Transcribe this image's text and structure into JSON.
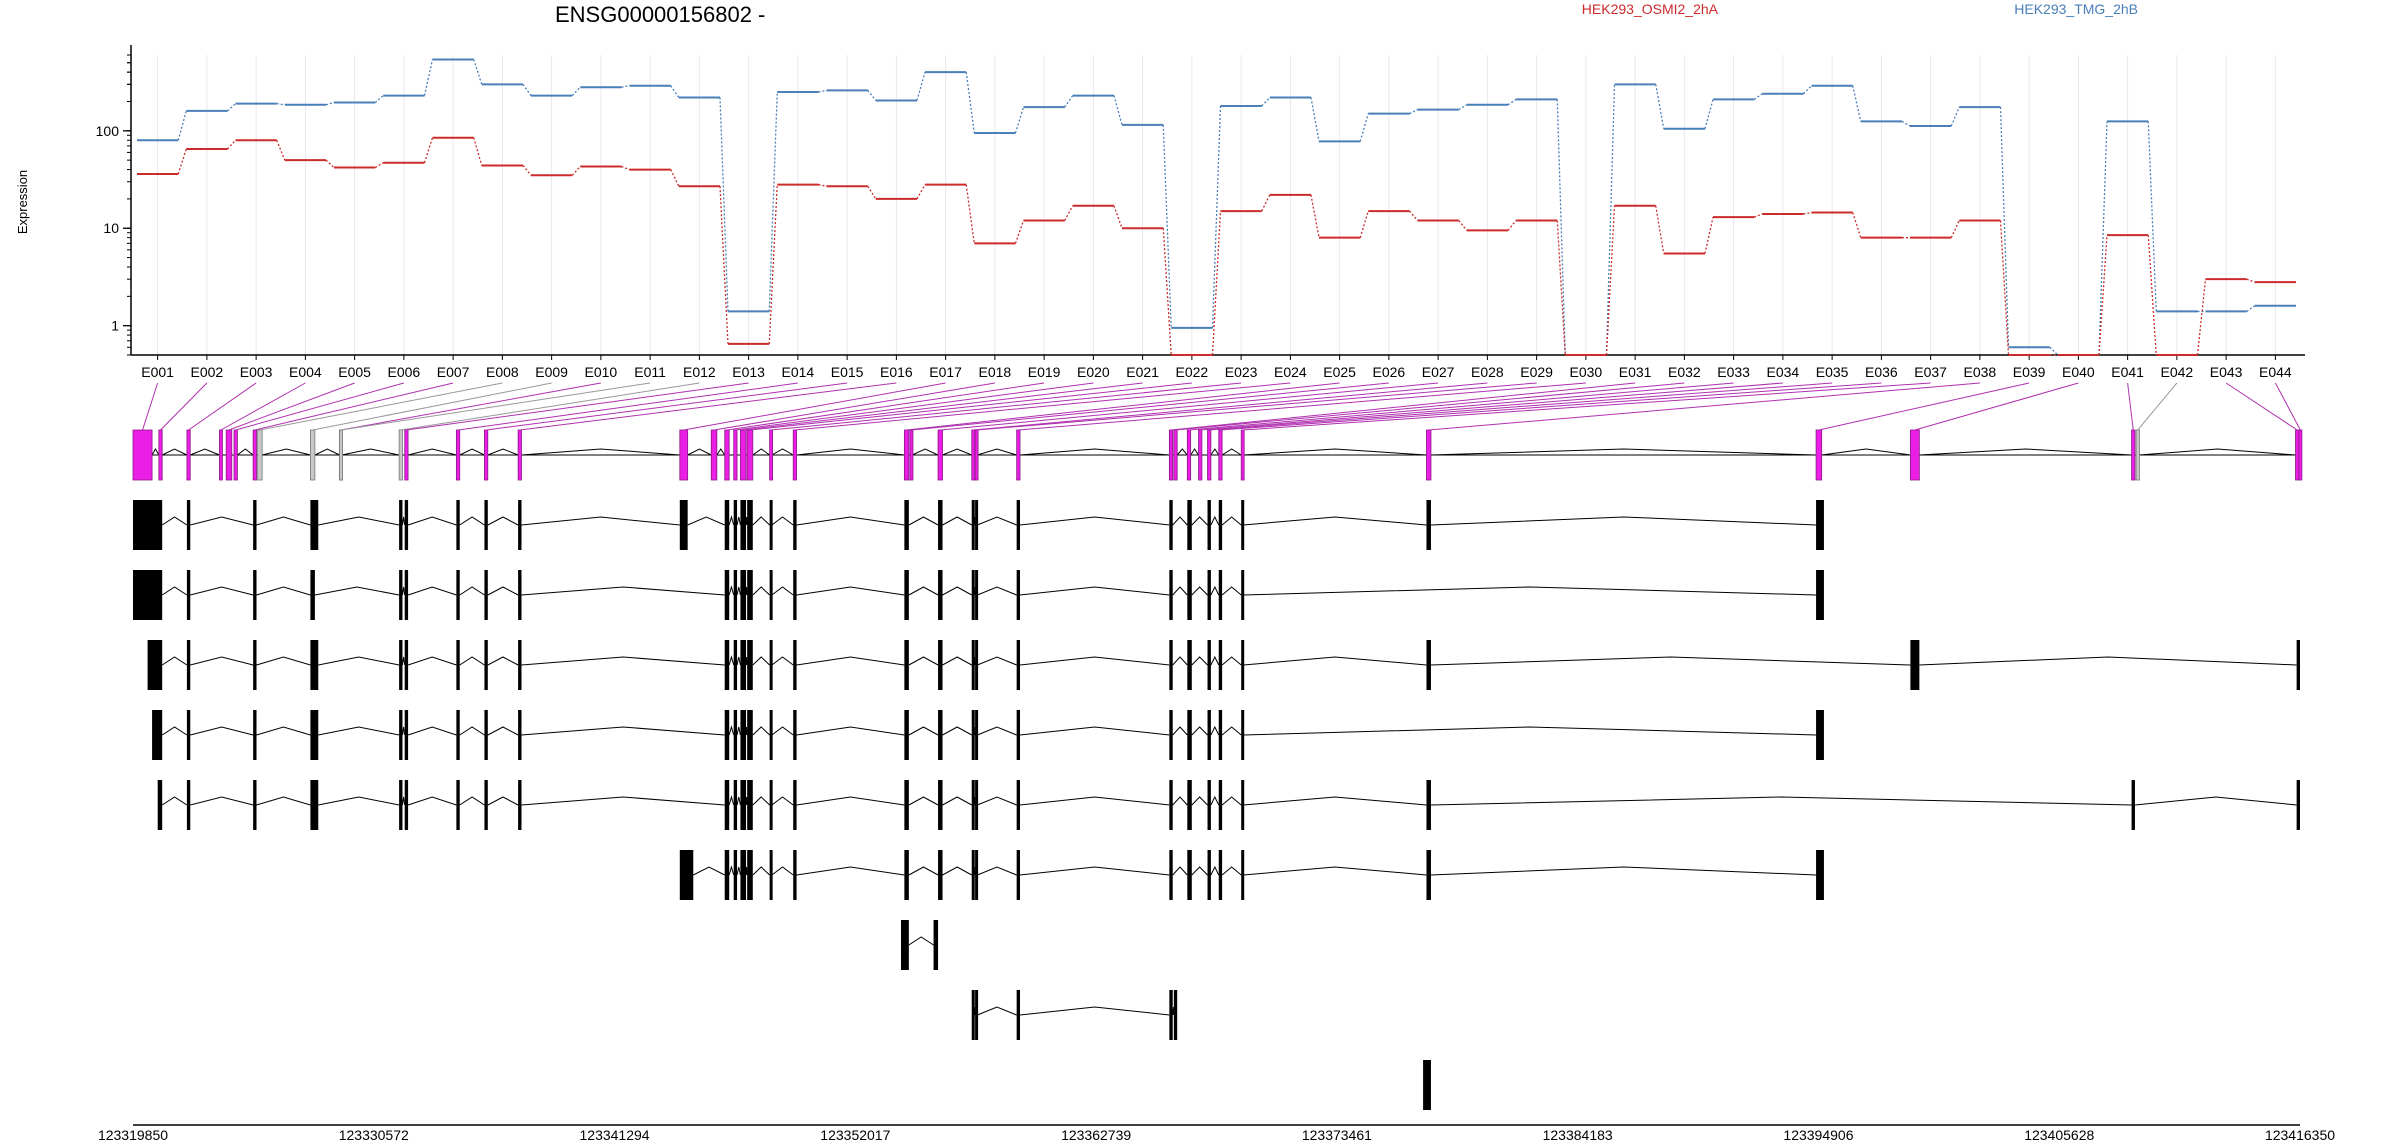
{
  "chart_data": {
    "type": "line",
    "title": "ENSG00000156802 -",
    "ylabel": "Expression",
    "xlabel": "",
    "y_scale": "log",
    "ylim": [
      0.5,
      600
    ],
    "yticks": [
      "1",
      "10",
      "100"
    ],
    "grid": "vertical lines at each exon label",
    "legend_placement": "top-right",
    "categories": [
      "E001",
      "E002",
      "E003",
      "E004",
      "E005",
      "E006",
      "E007",
      "E008",
      "E009",
      "E010",
      "E011",
      "E012",
      "E013",
      "E014",
      "E015",
      "E016",
      "E017",
      "E018",
      "E019",
      "E020",
      "E021",
      "E022",
      "E023",
      "E024",
      "E025",
      "E026",
      "E027",
      "E028",
      "E029",
      "E030",
      "E031",
      "E032",
      "E033",
      "E034",
      "E035",
      "E036",
      "E037",
      "E038",
      "E039",
      "E040",
      "E041",
      "E042",
      "E043",
      "E044"
    ],
    "series": [
      {
        "name": "HEK293_TMG_2hB",
        "color": "#4a7fb8",
        "values": [
          80,
          160,
          190,
          185,
          195,
          230,
          540,
          300,
          230,
          280,
          290,
          220,
          1.4,
          250,
          260,
          205,
          400,
          95,
          175,
          230,
          115,
          0.95,
          180,
          220,
          78,
          150,
          165,
          185,
          210,
          0.5,
          300,
          105,
          210,
          240,
          290,
          125,
          112,
          175,
          0.6,
          0.5,
          125,
          1.4,
          1.4,
          1.6
        ]
      },
      {
        "name": "HEK293_OSMI2_2hA",
        "color": "#cc2b2b",
        "values": [
          36,
          65,
          80,
          50,
          42,
          47,
          85,
          44,
          35,
          43,
          40,
          27,
          0.65,
          28,
          27,
          20,
          28,
          7,
          12,
          17,
          10,
          0.5,
          15,
          22,
          8,
          15,
          12,
          9.5,
          12,
          0.5,
          17,
          5.5,
          13,
          14,
          14.5,
          8,
          8,
          12,
          0.5,
          0.5,
          8.5,
          0.5,
          3,
          2.8
        ]
      }
    ],
    "genomic_axis_ticks": [
      "123319850",
      "123330572",
      "123341294",
      "123352017",
      "123362739",
      "123373461",
      "123384183",
      "123394906",
      "123405628",
      "123416350"
    ],
    "gene_model": {
      "exon_spans": [
        [
          123319850,
          123320700
        ],
        [
          123321000,
          123321150
        ],
        [
          123322250,
          123322400
        ],
        [
          123323700,
          123323800
        ],
        [
          123324000,
          123324250
        ],
        [
          123324350,
          123324500
        ],
        [
          123325200,
          123325350
        ],
        [
          123325400,
          123325600
        ],
        [
          123327750,
          123327950
        ],
        [
          123329050,
          123329150
        ],
        [
          123329050,
          123329150
        ],
        [
          123331700,
          123331850
        ],
        [
          123331950,
          123332100
        ],
        [
          123334250,
          123334400
        ],
        [
          123335500,
          123335650
        ],
        [
          123337000,
          123337150
        ],
        [
          123344200,
          123344550
        ],
        [
          123345600,
          123345850
        ],
        [
          123346200,
          123346400
        ],
        [
          123346600,
          123346750
        ],
        [
          123346900,
          123347150
        ],
        [
          123347200,
          123347450
        ],
        [
          123348200,
          123348300
        ],
        [
          123349250,
          123349400
        ],
        [
          123354200,
          123354400
        ],
        [
          123354450,
          123354550
        ],
        [
          123355700,
          123355900
        ],
        [
          123357200,
          123357300
        ],
        [
          123357350,
          123357450
        ],
        [
          123359200,
          123359350
        ],
        [
          123366000,
          123366150
        ],
        [
          123366200,
          123366350
        ],
        [
          123366800,
          123366950
        ],
        [
          123367300,
          123367450
        ],
        [
          123367700,
          123367850
        ],
        [
          123368200,
          123368350
        ],
        [
          123369200,
          123369300
        ],
        [
          123377450,
          123377650
        ],
        [
          123394800,
          123395050
        ],
        [
          123399000,
          123399400
        ],
        [
          123408850,
          123409000
        ],
        [
          123409050,
          123409200
        ],
        [
          123416150,
          123416300
        ],
        [
          123416300,
          123416350
        ]
      ],
      "highlighted_exons": [
        "E001",
        "E002",
        "E003",
        "E004",
        "E005",
        "E006",
        "E007",
        "E010",
        "E013",
        "E014",
        "E015",
        "E016",
        "E017",
        "E018",
        "E019",
        "E020",
        "E021",
        "E022",
        "E023",
        "E024",
        "E025",
        "E026",
        "E027",
        "E028",
        "E029",
        "E030",
        "E031",
        "E032",
        "E033",
        "E034",
        "E035",
        "E036",
        "E037",
        "E038",
        "E039",
        "E040",
        "E041",
        "E043",
        "E044"
      ],
      "transcripts": [
        [
          [
            123319850,
            123321150
          ],
          [
            123322250,
            123322400
          ],
          [
            123325200,
            123325350
          ],
          [
            123327750,
            123328100
          ],
          [
            123331700,
            123331850
          ],
          [
            123331950,
            123332100
          ],
          [
            123334250,
            123334400
          ],
          [
            123335500,
            123335650
          ],
          [
            123337000,
            123337150
          ],
          [
            123344200,
            123344550
          ],
          [
            123346200,
            123346400
          ],
          [
            123346600,
            123346750
          ],
          [
            123346900,
            123347150
          ],
          [
            123347200,
            123347450
          ],
          [
            123348200,
            123348300
          ],
          [
            123349250,
            123349400
          ],
          [
            123354200,
            123354400
          ],
          [
            123355700,
            123355900
          ],
          [
            123357200,
            123357300
          ],
          [
            123357350,
            123357450
          ],
          [
            123359200,
            123359350
          ],
          [
            123366000,
            123366150
          ],
          [
            123366800,
            123367000
          ],
          [
            123367700,
            123367850
          ],
          [
            123368200,
            123368350
          ],
          [
            123369200,
            123369300
          ],
          [
            123377450,
            123377650
          ],
          [
            123394800,
            123395150
          ]
        ],
        [
          [
            123319850,
            123321150
          ],
          [
            123322250,
            123322400
          ],
          [
            123325200,
            123325350
          ],
          [
            123327750,
            123327950
          ],
          [
            123331700,
            123331850
          ],
          [
            123331950,
            123332100
          ],
          [
            123334250,
            123334400
          ],
          [
            123335500,
            123335650
          ],
          [
            123337000,
            123337150
          ],
          [
            123346200,
            123346400
          ],
          [
            123346600,
            123346750
          ],
          [
            123346900,
            123347150
          ],
          [
            123347200,
            123347450
          ],
          [
            123348200,
            123348300
          ],
          [
            123349250,
            123349400
          ],
          [
            123354200,
            123354400
          ],
          [
            123355700,
            123355900
          ],
          [
            123357200,
            123357300
          ],
          [
            123357350,
            123357450
          ],
          [
            123359200,
            123359350
          ],
          [
            123366000,
            123366150
          ],
          [
            123366800,
            123367000
          ],
          [
            123367700,
            123367850
          ],
          [
            123368200,
            123368350
          ],
          [
            123369200,
            123369300
          ],
          [
            123394800,
            123395150
          ]
        ],
        [
          [
            123320500,
            123321150
          ],
          [
            123322250,
            123322400
          ],
          [
            123325200,
            123325350
          ],
          [
            123327750,
            123328100
          ],
          [
            123331700,
            123331850
          ],
          [
            123331950,
            123332100
          ],
          [
            123334250,
            123334400
          ],
          [
            123335500,
            123335650
          ],
          [
            123337000,
            123337150
          ],
          [
            123346200,
            123346400
          ],
          [
            123346600,
            123346750
          ],
          [
            123346900,
            123347150
          ],
          [
            123347200,
            123347450
          ],
          [
            123348200,
            123348300
          ],
          [
            123349250,
            123349400
          ],
          [
            123354200,
            123354400
          ],
          [
            123355700,
            123355900
          ],
          [
            123357200,
            123357300
          ],
          [
            123357350,
            123357450
          ],
          [
            123359200,
            123359350
          ],
          [
            123366000,
            123366150
          ],
          [
            123366800,
            123367000
          ],
          [
            123367700,
            123367850
          ],
          [
            123368200,
            123368350
          ],
          [
            123369200,
            123369300
          ],
          [
            123377450,
            123377650
          ],
          [
            123399000,
            123399400
          ],
          [
            123416200,
            123416350
          ]
        ],
        [
          [
            123320700,
            123321150
          ],
          [
            123322250,
            123322400
          ],
          [
            123325200,
            123325350
          ],
          [
            123327750,
            123328100
          ],
          [
            123331700,
            123331850
          ],
          [
            123331950,
            123332100
          ],
          [
            123334250,
            123334400
          ],
          [
            123335500,
            123335650
          ],
          [
            123337000,
            123337150
          ],
          [
            123346200,
            123346400
          ],
          [
            123346600,
            123346750
          ],
          [
            123346900,
            123347150
          ],
          [
            123347200,
            123347450
          ],
          [
            123348200,
            123348300
          ],
          [
            123349250,
            123349400
          ],
          [
            123354200,
            123354400
          ],
          [
            123355700,
            123355900
          ],
          [
            123357200,
            123357300
          ],
          [
            123357350,
            123357450
          ],
          [
            123359200,
            123359350
          ],
          [
            123366000,
            123366150
          ],
          [
            123366800,
            123367000
          ],
          [
            123367700,
            123367850
          ],
          [
            123368200,
            123368350
          ],
          [
            123369200,
            123369300
          ],
          [
            123394800,
            123395150
          ]
        ],
        [
          [
            123320950,
            123321150
          ],
          [
            123322250,
            123322400
          ],
          [
            123325200,
            123325350
          ],
          [
            123327750,
            123328100
          ],
          [
            123331700,
            123331850
          ],
          [
            123331950,
            123332100
          ],
          [
            123334250,
            123334400
          ],
          [
            123335500,
            123335650
          ],
          [
            123337000,
            123337150
          ],
          [
            123346200,
            123346400
          ],
          [
            123346600,
            123346750
          ],
          [
            123346900,
            123347150
          ],
          [
            123347200,
            123347450
          ],
          [
            123348200,
            123348300
          ],
          [
            123349250,
            123349400
          ],
          [
            123354200,
            123354400
          ],
          [
            123355700,
            123355900
          ],
          [
            123357200,
            123357300
          ],
          [
            123357350,
            123357450
          ],
          [
            123359200,
            123359350
          ],
          [
            123366000,
            123366150
          ],
          [
            123366800,
            123367000
          ],
          [
            123367700,
            123367850
          ],
          [
            123368200,
            123368350
          ],
          [
            123369200,
            123369300
          ],
          [
            123377450,
            123377650
          ],
          [
            123408850,
            123409000
          ],
          [
            123416200,
            123416350
          ]
        ],
        [
          [
            123344200,
            123344800
          ],
          [
            123346200,
            123346400
          ],
          [
            123346600,
            123346750
          ],
          [
            123346900,
            123347150
          ],
          [
            123347200,
            123347450
          ],
          [
            123348200,
            123348300
          ],
          [
            123349250,
            123349400
          ],
          [
            123354200,
            123354400
          ],
          [
            123355700,
            123355900
          ],
          [
            123357200,
            123357300
          ],
          [
            123357350,
            123357450
          ],
          [
            123359200,
            123359350
          ],
          [
            123366000,
            123366150
          ],
          [
            123366800,
            123367000
          ],
          [
            123367700,
            123367850
          ],
          [
            123368200,
            123368350
          ],
          [
            123369200,
            123369300
          ],
          [
            123377450,
            123377650
          ],
          [
            123394800,
            123395150
          ]
        ],
        [
          [
            123354050,
            123354400
          ],
          [
            123355500,
            123355700
          ]
        ],
        [
          [
            123357200,
            123357300
          ],
          [
            123357350,
            123357450
          ],
          [
            123359200,
            123359350
          ],
          [
            123366000,
            123366150
          ],
          [
            123366200,
            123366350
          ]
        ],
        [
          [
            123377300,
            123377650
          ]
        ]
      ]
    }
  }
}
